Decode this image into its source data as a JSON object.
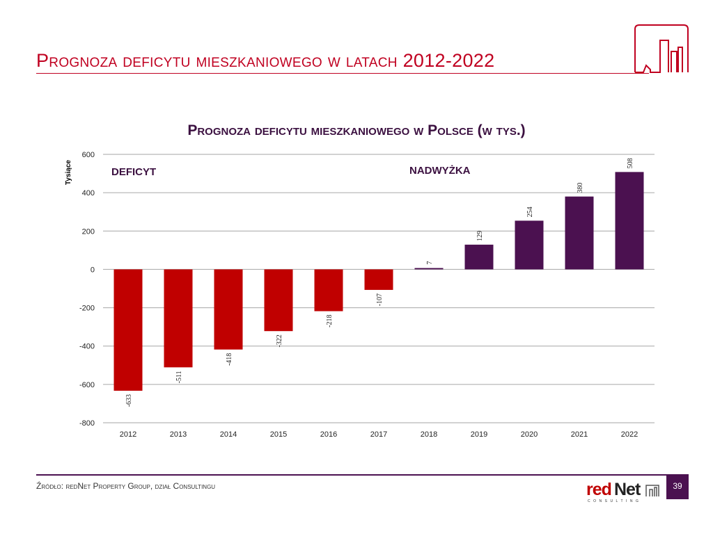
{
  "slide": {
    "title": "Prognoza deficytu mieszkaniowego w latach 2012-2022",
    "source": "Źródło: redNet Property Group, dział Consultingu",
    "page_number": "39",
    "logo_text": "redNet",
    "logo_subtext": "CONSULTING"
  },
  "colors": {
    "deficit": "#c00000",
    "surplus": "#4b1150",
    "accent": "#c00020"
  },
  "chart_data": {
    "type": "bar",
    "title": "Prognoza deficytu mieszkaniowego w Polsce (w tys.)",
    "ylabel": "Tysiące",
    "xlabel": "",
    "ylim": [
      -800,
      600
    ],
    "yticks": [
      600,
      400,
      200,
      0,
      -200,
      -400,
      -600,
      -800
    ],
    "grid": true,
    "categories": [
      "2012",
      "2013",
      "2014",
      "2015",
      "2016",
      "2017",
      "2018",
      "2019",
      "2020",
      "2021",
      "2022"
    ],
    "values": [
      -633,
      -511,
      -418,
      -322,
      -218,
      -107,
      7,
      129,
      254,
      380,
      508
    ],
    "annotations": [
      "DEFICYT",
      "NADWYŻKA"
    ]
  }
}
